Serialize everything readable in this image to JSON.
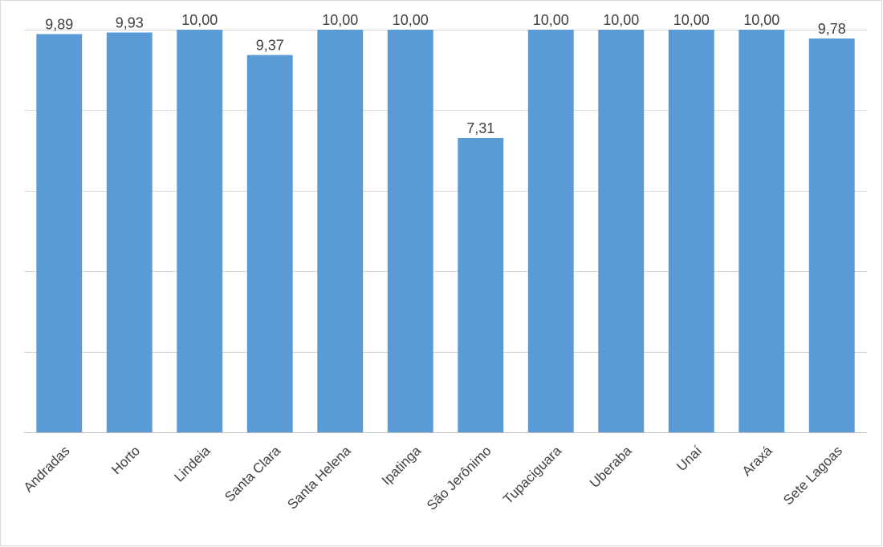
{
  "chart_data": {
    "type": "bar",
    "categories": [
      "Andradas",
      "Horto",
      "Lindeia",
      "Santa Clara",
      "Santa Helena",
      "Ipatinga",
      "São Jerônimo",
      "Tupaciguara",
      "Uberaba",
      "Unaí",
      "Araxá",
      "Sete Lagoas"
    ],
    "values": [
      9.89,
      9.93,
      10.0,
      9.37,
      10.0,
      10.0,
      7.31,
      10.0,
      10.0,
      10.0,
      10.0,
      9.78
    ],
    "data_labels": [
      "9,89",
      "9,93",
      "10,00",
      "9,37",
      "10,00",
      "10,00",
      "7,31",
      "10,00",
      "10,00",
      "10,00",
      "10,00",
      "9,78"
    ],
    "title": "",
    "xlabel": "",
    "ylabel": "",
    "ylim": [
      0,
      10
    ],
    "grid": true,
    "y_tick_labels_shown": false,
    "x_tick_rotation": "-45deg",
    "bar_color": "#5b9bd5",
    "gridline_color": "#d9d9d9",
    "label_color": "#404040"
  }
}
